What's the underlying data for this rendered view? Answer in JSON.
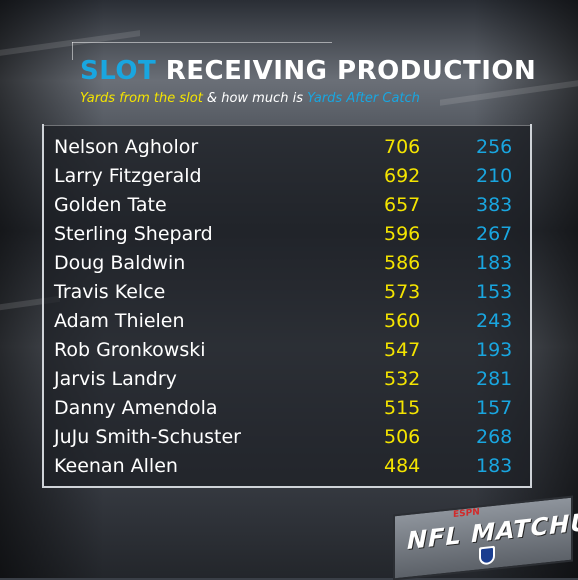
{
  "title": {
    "part1": "SLOT",
    "part2": " RECEIVING PRODUCTION"
  },
  "subtitle": {
    "part1": "Yards from the slot",
    "part2": " & how much is ",
    "part3": "Yards After Catch"
  },
  "colors": {
    "yards": "#f4e400",
    "yac": "#19a6e0",
    "name": "#ffffff"
  },
  "players": [
    {
      "name": "Nelson Agholor",
      "yards": "706",
      "yac": "256"
    },
    {
      "name": "Larry Fitzgerald",
      "yards": "692",
      "yac": "210"
    },
    {
      "name": "Golden Tate",
      "yards": "657",
      "yac": "383"
    },
    {
      "name": "Sterling Shepard",
      "yards": "596",
      "yac": "267"
    },
    {
      "name": "Doug Baldwin",
      "yards": "586",
      "yac": "183"
    },
    {
      "name": "Travis Kelce",
      "yards": "573",
      "yac": "153"
    },
    {
      "name": "Adam Thielen",
      "yards": "560",
      "yac": "243"
    },
    {
      "name": "Rob Gronkowski",
      "yards": "547",
      "yac": "193"
    },
    {
      "name": "Jarvis Landry",
      "yards": "532",
      "yac": "281"
    },
    {
      "name": "Danny Amendola",
      "yards": "515",
      "yac": "157"
    },
    {
      "name": "JuJu Smith-Schuster",
      "yards": "506",
      "yac": "268"
    },
    {
      "name": "Keenan Allen",
      "yards": "484",
      "yac": "183"
    }
  ],
  "logo": {
    "text": "NFL MATCHUP",
    "network": "ESPN"
  }
}
